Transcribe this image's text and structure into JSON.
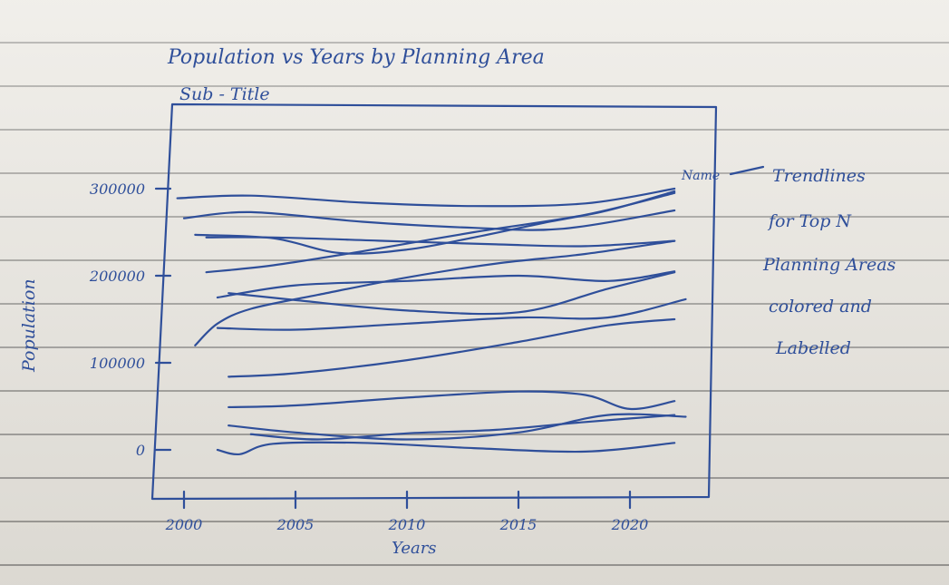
{
  "chart_data": {
    "type": "line",
    "title": "Population vs Years by Planning Area",
    "subtitle": "Sub - Title",
    "xlabel": "Years",
    "ylabel": "Population",
    "x_ticks": [
      2000,
      2005,
      2010,
      2015,
      2020
    ],
    "y_ticks": [
      "300000",
      "200000",
      "100000",
      "0"
    ],
    "y_tick_values": [
      300000,
      200000,
      100000,
      0
    ],
    "xlim": [
      1999,
      2023
    ],
    "ylim": [
      -50000,
      390000
    ],
    "grid": false,
    "series_end_label": "Name",
    "annotation": [
      "Trendlines",
      "for Top N",
      "Planning Areas",
      "colored and",
      "Labelled"
    ],
    "series": [
      {
        "x": [
          1999.7,
          2003,
          2008,
          2013,
          2018,
          2022
        ],
        "values": [
          289000,
          292000,
          284000,
          280000,
          283000,
          300000
        ]
      },
      {
        "x": [
          2000,
          2003,
          2008,
          2013,
          2017,
          2022
        ],
        "values": [
          266000,
          273000,
          262000,
          255000,
          254000,
          275000
        ]
      },
      {
        "x": [
          2000.5,
          2004,
          2007,
          2010,
          2013,
          2016,
          2019,
          2022
        ],
        "values": [
          247000,
          243000,
          226000,
          230000,
          244000,
          260000,
          275000,
          297000
        ]
      },
      {
        "x": [
          2001,
          2004,
          2009,
          2014,
          2018,
          2022
        ],
        "values": [
          244000,
          244000,
          240000,
          236000,
          234000,
          240000
        ]
      },
      {
        "x": [
          2001,
          2004,
          2008,
          2013,
          2018,
          2022
        ],
        "values": [
          204000,
          212000,
          228000,
          250000,
          270000,
          295000
        ]
      },
      {
        "x": [
          2001.5,
          2005,
          2010,
          2015,
          2019,
          2022
        ],
        "values": [
          175000,
          189000,
          194000,
          200000,
          194000,
          205000
        ]
      },
      {
        "x": [
          2002,
          2005,
          2010,
          2015,
          2019,
          2022
        ],
        "values": [
          180000,
          172000,
          160000,
          158000,
          185000,
          204000
        ]
      },
      {
        "x": [
          2000.5,
          2001.5,
          2003,
          2006,
          2010,
          2014,
          2018,
          2022
        ],
        "values": [
          120000,
          145000,
          162000,
          178000,
          198000,
          214000,
          225000,
          240000
        ]
      },
      {
        "x": [
          2001.5,
          2005,
          2010,
          2015,
          2019,
          2022.5
        ],
        "values": [
          140000,
          138000,
          145000,
          152000,
          152000,
          173000
        ]
      },
      {
        "x": [
          2002,
          2005,
          2010,
          2015,
          2019,
          2022
        ],
        "values": [
          84000,
          88000,
          103000,
          124000,
          143000,
          150000
        ]
      },
      {
        "x": [
          2002,
          2005,
          2010,
          2015,
          2018,
          2020,
          2022
        ],
        "values": [
          49000,
          51000,
          60000,
          67000,
          63000,
          47000,
          56000
        ]
      },
      {
        "x": [
          2002,
          2005,
          2010,
          2015,
          2019,
          2022.5
        ],
        "values": [
          28000,
          20000,
          12000,
          20000,
          40000,
          38000
        ]
      },
      {
        "x": [
          2003,
          2006,
          2010,
          2014,
          2018,
          2022
        ],
        "values": [
          18000,
          12000,
          19000,
          23000,
          32000,
          40000
        ]
      },
      {
        "x": [
          2001.5,
          2002.5,
          2004,
          2008,
          2013,
          2018,
          2022
        ],
        "values": [
          0,
          -5000,
          7000,
          8000,
          2000,
          -2000,
          8000
        ]
      }
    ]
  }
}
